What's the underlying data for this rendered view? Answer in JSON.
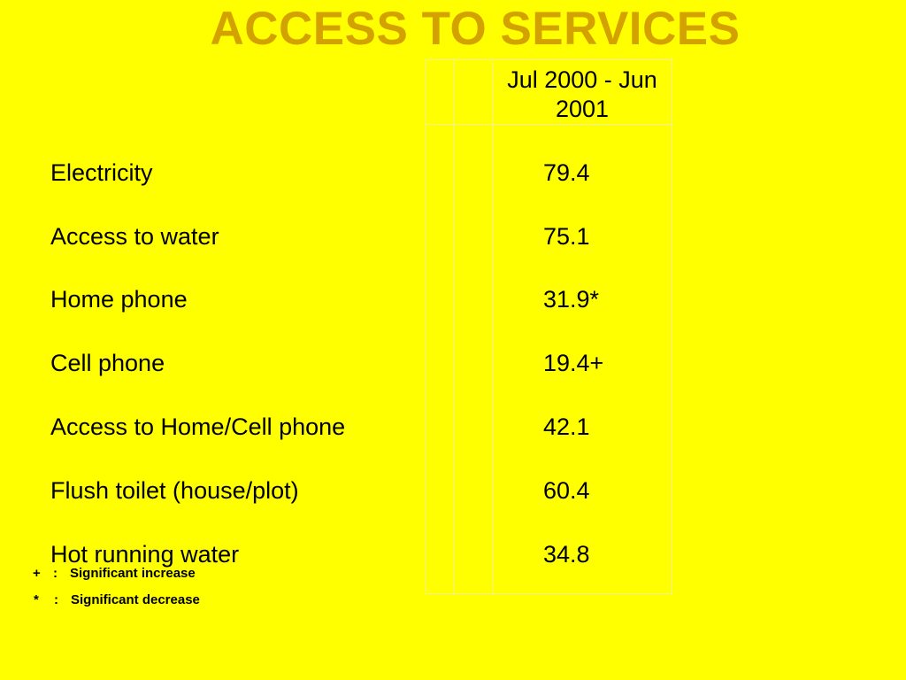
{
  "title": "ACCESS TO SERVICES",
  "table": {
    "column_header": "Jul 2000 - Jun 2001",
    "rows": [
      {
        "label": "Electricity",
        "value": "79.4"
      },
      {
        "label": "Access to water",
        "value": "75.1"
      },
      {
        "label": "Home phone",
        "value": "31.9*"
      },
      {
        "label": "Cell phone",
        "value": "19.4+"
      },
      {
        "label": "Access to Home/Cell phone",
        "value": "42.1"
      },
      {
        "label": "Flush toilet (house/plot)",
        "value": "60.4"
      },
      {
        "label": "Hot running water",
        "value": "34.8"
      }
    ]
  },
  "legend": [
    {
      "symbol": "+",
      "separator": ":",
      "text": "Significant increase"
    },
    {
      "symbol": "*",
      "separator": ":",
      "text": "Significant decrease"
    }
  ],
  "colors": {
    "background": "#ffff00",
    "title": "#d4a200",
    "grid_lines": "#f0ef9e",
    "text": "#000000"
  }
}
